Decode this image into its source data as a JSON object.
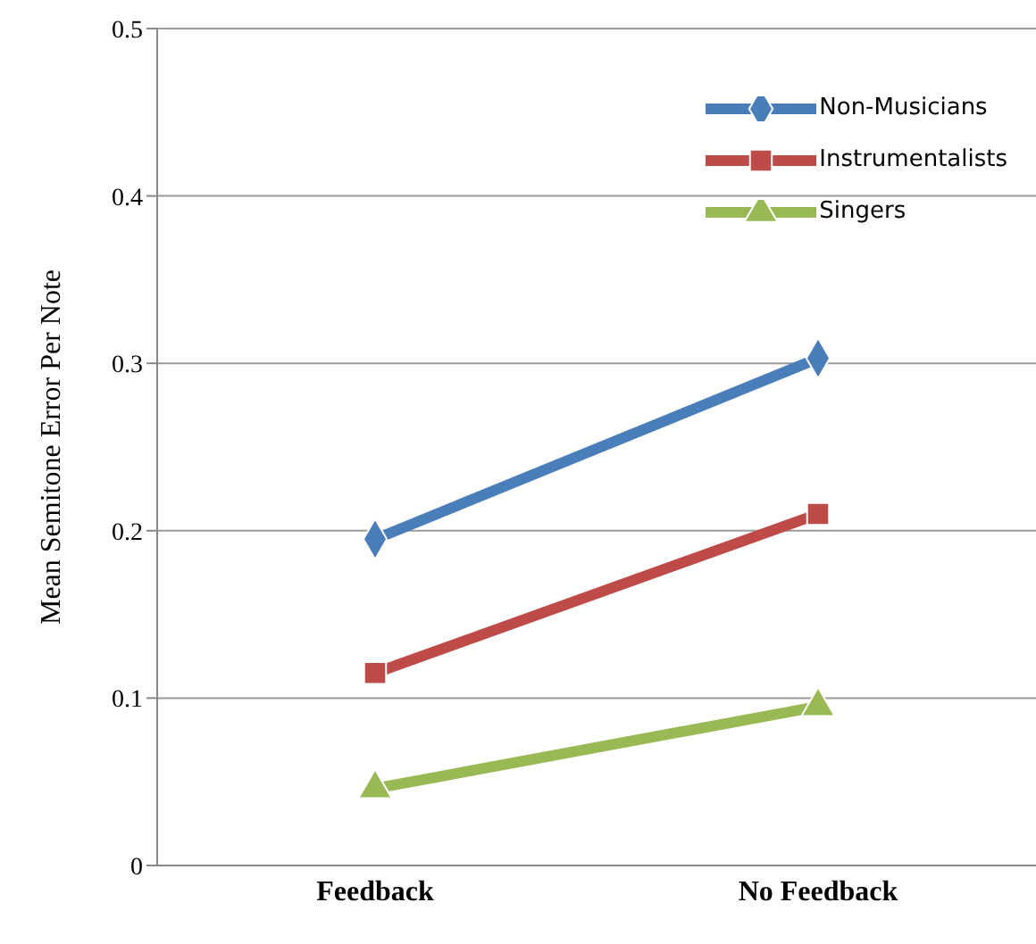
{
  "chart_data": {
    "type": "line",
    "ylabel": "Mean Semitone Error Per Note",
    "categories": [
      "Feedback",
      "No Feedback"
    ],
    "series": [
      {
        "name": "Non-Musicians",
        "color": "#4a7ebb",
        "marker": "diamond",
        "values": [
          0.195,
          0.303
        ]
      },
      {
        "name": "Instrumentalists",
        "color": "#be4b48",
        "marker": "square",
        "values": [
          0.115,
          0.21
        ]
      },
      {
        "name": "Singers",
        "color": "#98b954",
        "marker": "triangle",
        "values": [
          0.046,
          0.095
        ]
      }
    ],
    "ylim": [
      0,
      0.5
    ],
    "yticks": [
      0,
      0.1,
      0.2,
      0.3,
      0.4,
      0.5
    ],
    "grid": "y",
    "legend": "top right",
    "line_style": "solid"
  }
}
